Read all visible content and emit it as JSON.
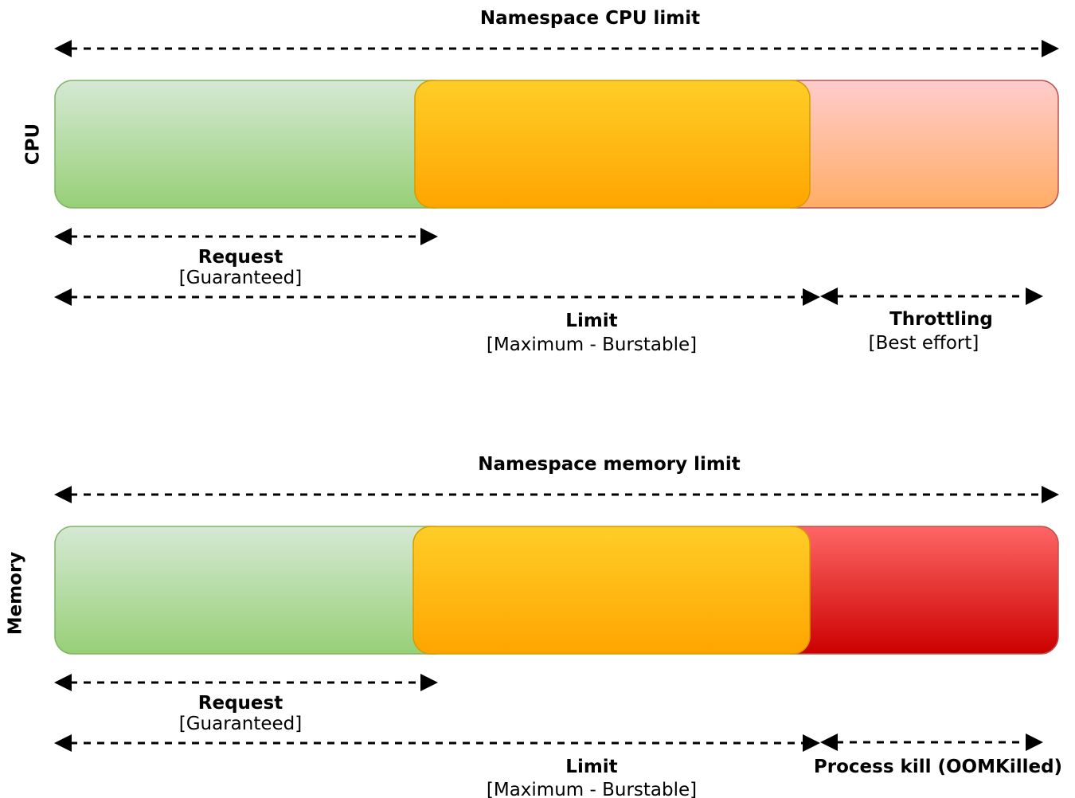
{
  "colors": {
    "green_top": "#d5e8d4",
    "green_bottom": "#97d077",
    "green_stroke": "#82b366",
    "orange_top": "#ffcd28",
    "orange_bottom": "#ffa500",
    "orange_stroke": "#d79b00",
    "pink_top": "#ffcccc",
    "pink_bottom": "#ffad66",
    "red_top": "#ff6666",
    "red_bottom": "#cc0000",
    "red_stroke": "#b85450",
    "arrow": "#000000"
  },
  "cpu": {
    "side_label": "CPU",
    "namespace_label": "Namespace CPU limit",
    "request_title": "Request",
    "request_sub": "[Guaranteed]",
    "limit_title": "Limit",
    "limit_sub": "[Maximum - Burstable]",
    "over_title": "Throttling",
    "over_sub": "[Best effort]"
  },
  "memory": {
    "side_label": "Memory",
    "namespace_label": "Namespace memory limit",
    "request_title": "Request",
    "request_sub": "[Guaranteed]",
    "limit_title": "Limit",
    "limit_sub": "[Maximum - Burstable]",
    "over_title": "Process kill (OOMKilled)"
  }
}
